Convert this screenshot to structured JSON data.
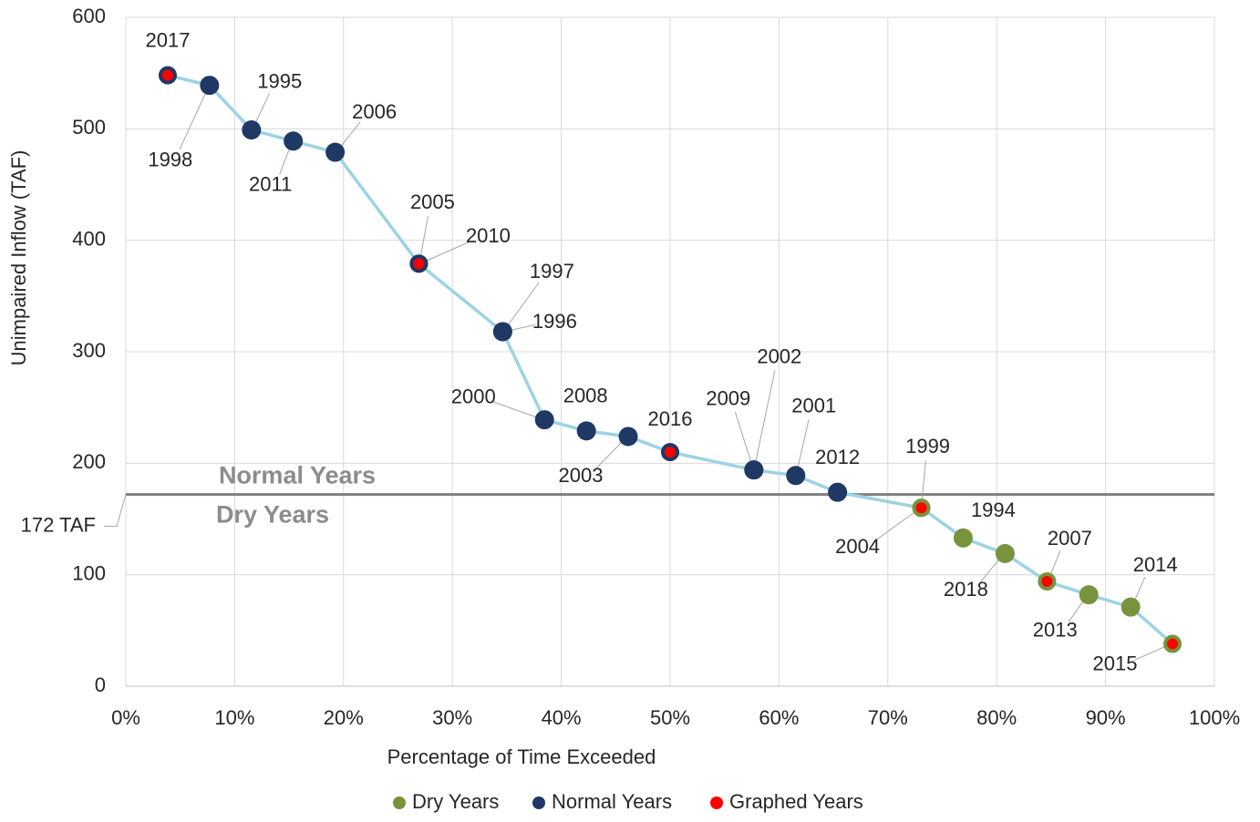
{
  "chart_data": {
    "type": "line",
    "x_label": "Percentage of Time Exceeded",
    "y_label": "Unimpaired Inflow (TAF)",
    "labels": [
      "2017",
      "1998",
      "1995",
      "2011",
      "2006",
      "2005",
      "2010",
      "1997",
      "1996",
      "2000",
      "2008",
      "2003",
      "2016",
      "2009",
      "2002",
      "2001",
      "2012",
      "1999",
      "2004",
      "1994",
      "2018",
      "2007",
      "2013",
      "2014",
      "2015"
    ],
    "x": [
      3.85,
      7.69,
      11.54,
      15.38,
      19.23,
      26.92,
      26.92,
      34.62,
      34.62,
      38.46,
      42.31,
      46.15,
      50,
      57.69,
      57.69,
      61.54,
      65.38,
      73.08,
      73.08,
      76.92,
      80.77,
      84.62,
      88.46,
      92.31,
      96.15
    ],
    "values": [
      548,
      539,
      499,
      489,
      479,
      379,
      379,
      318,
      318,
      239,
      229,
      224,
      210,
      194,
      194,
      189,
      174,
      160,
      160,
      133,
      119,
      94,
      82,
      71,
      38
    ],
    "groups": [
      1,
      1,
      1,
      1,
      1,
      1,
      1,
      1,
      1,
      1,
      1,
      1,
      1,
      1,
      1,
      1,
      1,
      0,
      0,
      0,
      0,
      0,
      0,
      0,
      0
    ],
    "graphed": [
      true,
      false,
      false,
      false,
      false,
      true,
      true,
      false,
      false,
      false,
      false,
      false,
      true,
      false,
      false,
      false,
      false,
      true,
      true,
      false,
      false,
      true,
      false,
      false,
      true
    ],
    "series": [
      {
        "name": "Dry Years",
        "color": "#77933c"
      },
      {
        "name": "Normal Years",
        "color": "#1f3864"
      },
      {
        "name": "Graphed Years",
        "color": "#ff0000"
      }
    ],
    "line_color": "#9dd3e3",
    "reference": {
      "value": 172,
      "label": "172 TAF",
      "above": "Normal Years",
      "below": "Dry Years",
      "color": "#7f7f7f"
    },
    "xlim": [
      0,
      100
    ],
    "xticks": [
      {
        "value": 0,
        "label": "0%"
      },
      {
        "value": 10,
        "label": "10%"
      },
      {
        "value": 20,
        "label": "20%"
      },
      {
        "value": 30,
        "label": "30%"
      },
      {
        "value": 40,
        "label": "40%"
      },
      {
        "value": 50,
        "label": "50%"
      },
      {
        "value": 60,
        "label": "60%"
      },
      {
        "value": 70,
        "label": "70%"
      },
      {
        "value": 80,
        "label": "80%"
      },
      {
        "value": 90,
        "label": "90%"
      },
      {
        "value": 100,
        "label": "100%"
      }
    ],
    "ylim": [
      0,
      600
    ],
    "yticks": [
      0,
      100,
      200,
      300,
      400,
      500,
      600
    ],
    "grid": true
  }
}
